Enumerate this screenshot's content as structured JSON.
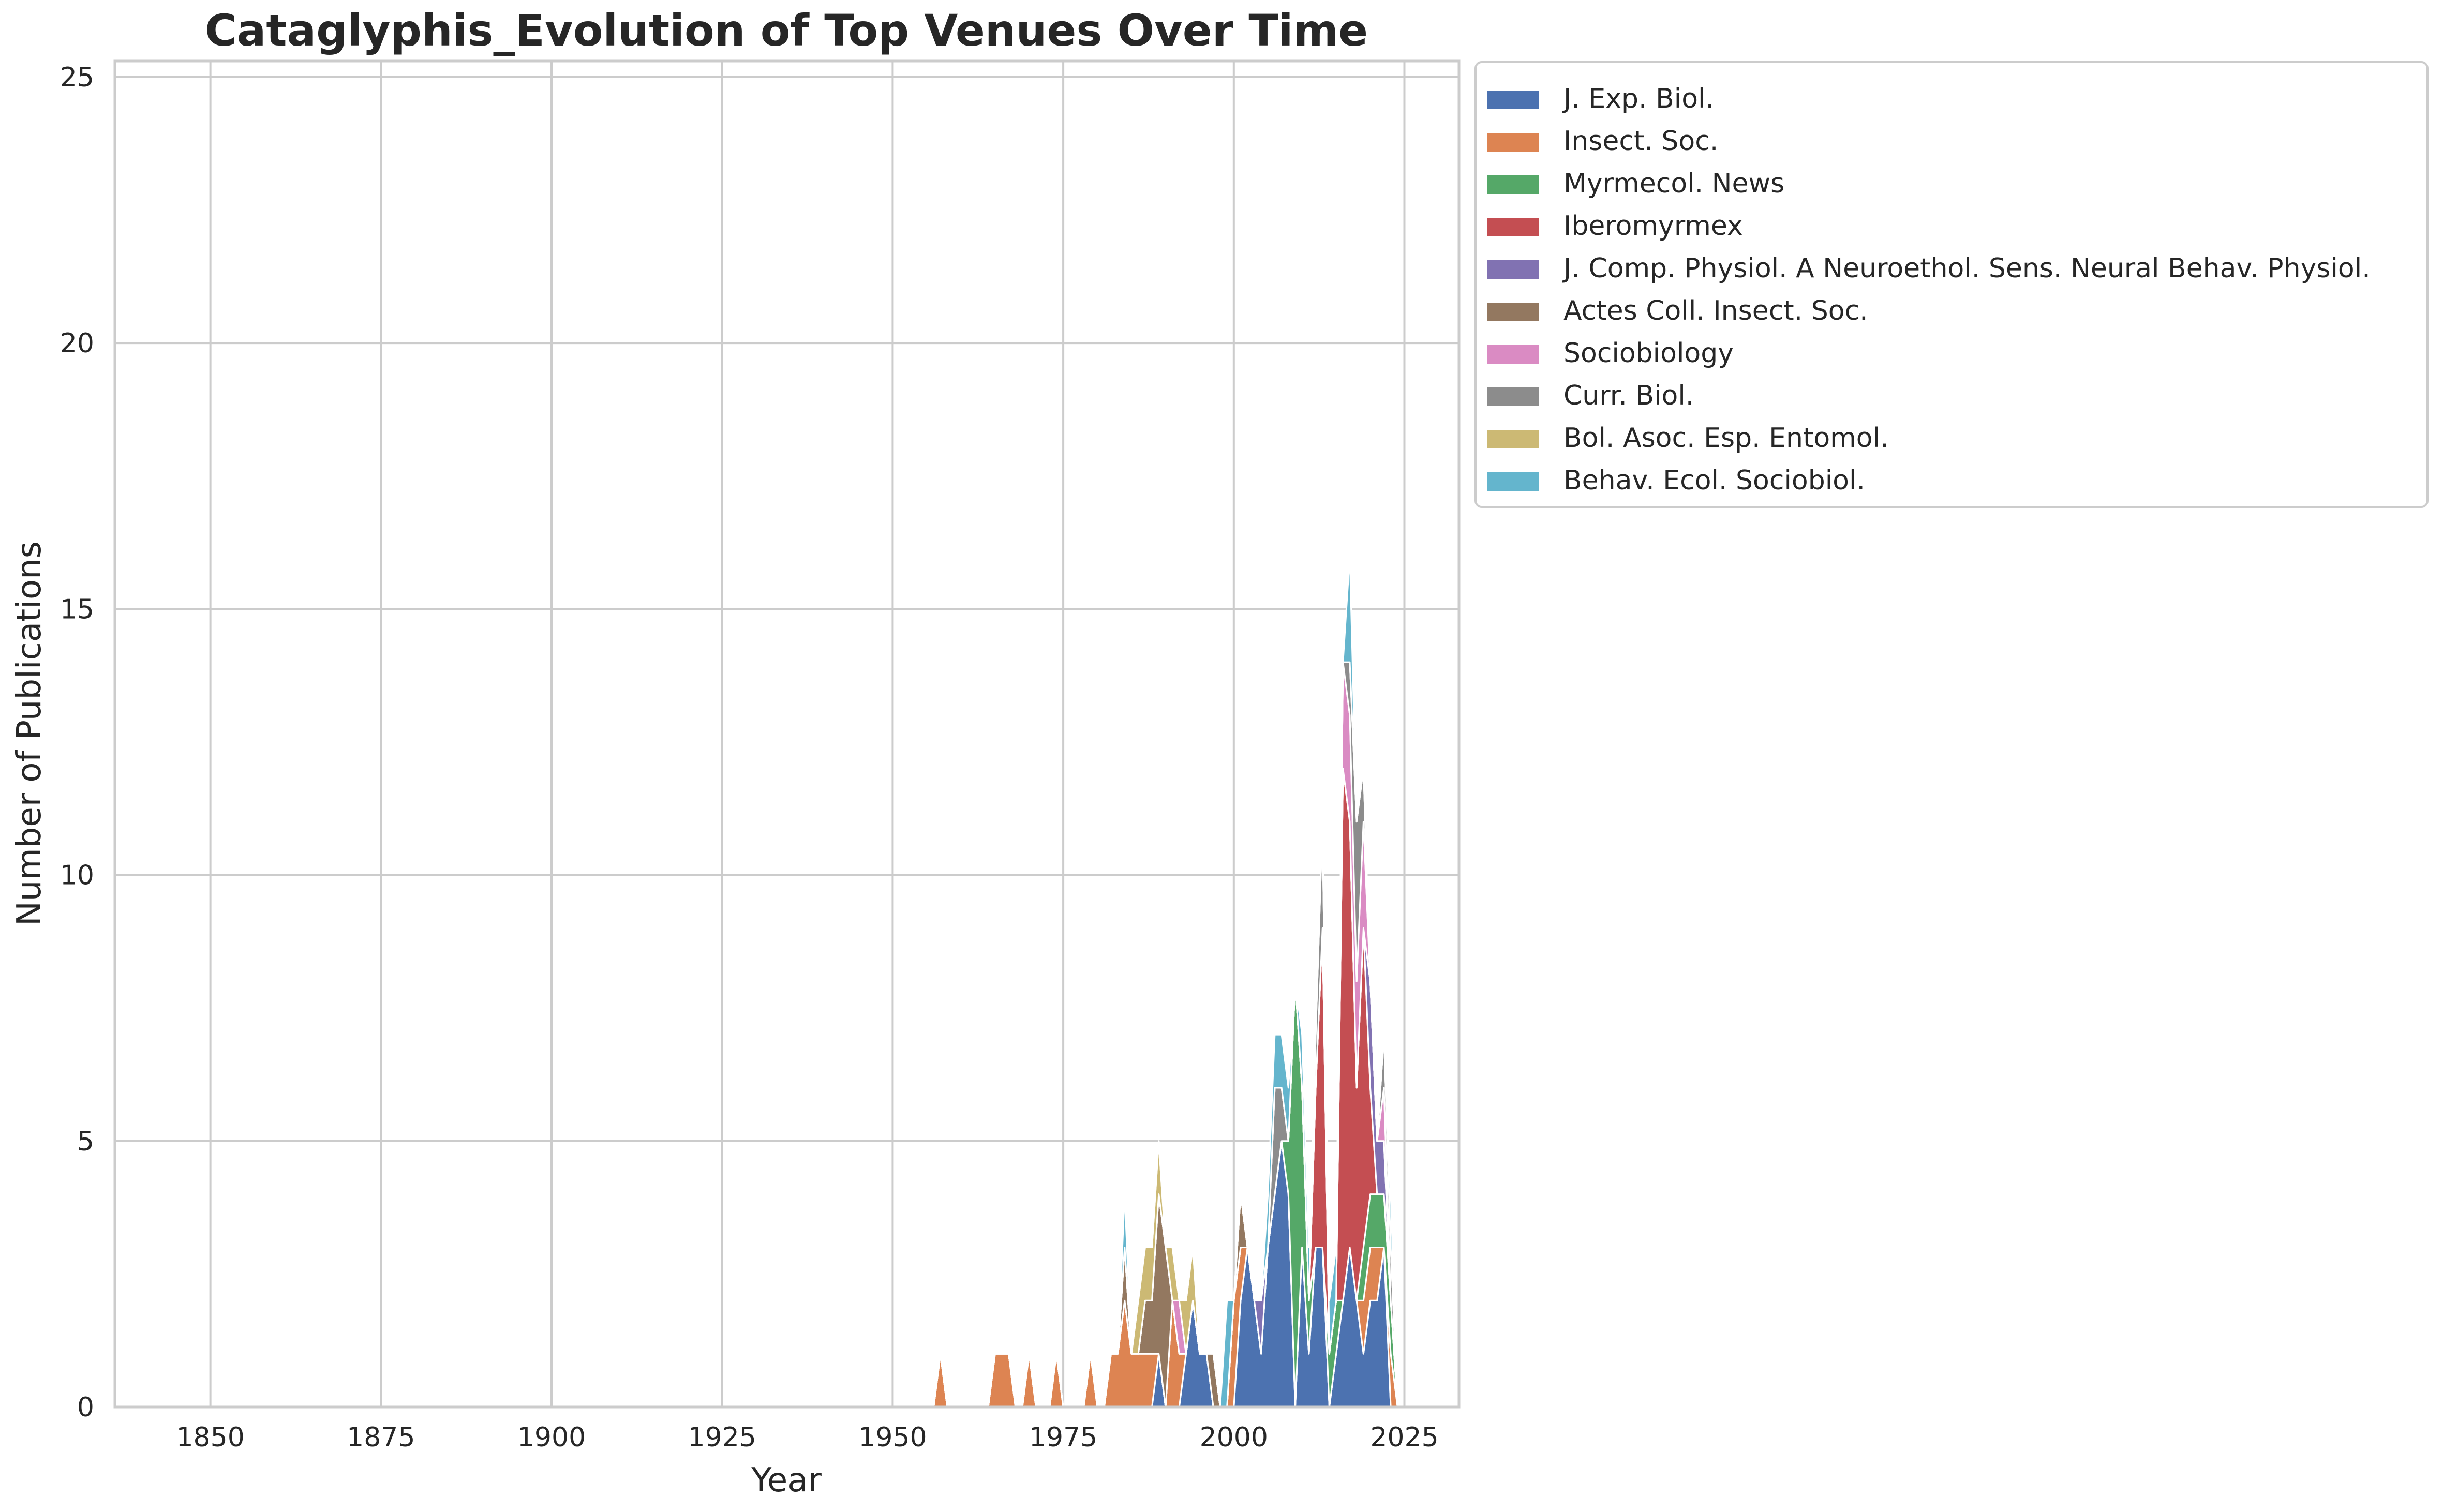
{
  "chart_data": {
    "type": "area",
    "title": "Cataglyphis_Evolution of Top Venues Over Time",
    "xlabel": "Year",
    "ylabel": "Number of Publications",
    "xlim": [
      1836,
      2033
    ],
    "ylim": [
      0,
      25.3
    ],
    "xticks": [
      1850,
      1875,
      1900,
      1925,
      1950,
      1975,
      2000,
      2025
    ],
    "yticks": [
      0,
      5,
      10,
      15,
      20,
      25
    ],
    "grid": true,
    "legend_position": "outside-top-right",
    "x": [
      1955,
      1956,
      1957,
      1958,
      1959,
      1960,
      1961,
      1962,
      1963,
      1964,
      1965,
      1966,
      1967,
      1968,
      1969,
      1970,
      1971,
      1972,
      1973,
      1974,
      1975,
      1976,
      1977,
      1978,
      1979,
      1980,
      1981,
      1982,
      1983,
      1984,
      1985,
      1986,
      1987,
      1988,
      1989,
      1990,
      1991,
      1992,
      1993,
      1994,
      1995,
      1996,
      1997,
      1998,
      1999,
      2000,
      2001,
      2002,
      2003,
      2004,
      2005,
      2006,
      2007,
      2008,
      2009,
      2010,
      2011,
      2012,
      2013,
      2014,
      2015,
      2016,
      2017,
      2018,
      2019,
      2020,
      2021,
      2022,
      2023,
      2024
    ],
    "series": [
      {
        "name": "J. Exp. Biol.",
        "color": "#4c72b0",
        "values": [
          0,
          0,
          0,
          0,
          0,
          0,
          0,
          0,
          0,
          0,
          0,
          0,
          0,
          0,
          0,
          0,
          0,
          0,
          0,
          0,
          0,
          0,
          0,
          0,
          0,
          0,
          0,
          0,
          0,
          0,
          0,
          0,
          0,
          0,
          1,
          0,
          0,
          0,
          1,
          2,
          1,
          1,
          0,
          0,
          0,
          0,
          2,
          3,
          2,
          1,
          3,
          4,
          5,
          4,
          0,
          3,
          1,
          3,
          3,
          0,
          1,
          2,
          3,
          2,
          1,
          2,
          2,
          3,
          0,
          0
        ]
      },
      {
        "name": "Insect. Soc.",
        "color": "#dd8452",
        "values": [
          0,
          0,
          1,
          0,
          0,
          0,
          0,
          0,
          0,
          0,
          1,
          1,
          1,
          0,
          0,
          1,
          0,
          0,
          0,
          1,
          0,
          0,
          0,
          0,
          1,
          0,
          0,
          1,
          1,
          2,
          1,
          1,
          1,
          1,
          0,
          0,
          2,
          1,
          0,
          0,
          0,
          0,
          0,
          0,
          0,
          2,
          1,
          0,
          0,
          0,
          0,
          0,
          0,
          0,
          0,
          0,
          0,
          0,
          0,
          0,
          0,
          0,
          0,
          0,
          1,
          1,
          1,
          0,
          1,
          0
        ]
      },
      {
        "name": "Myrmecol. News",
        "color": "#55a868",
        "values": [
          0,
          0,
          0,
          0,
          0,
          0,
          0,
          0,
          0,
          0,
          0,
          0,
          0,
          0,
          0,
          0,
          0,
          0,
          0,
          0,
          0,
          0,
          0,
          0,
          0,
          0,
          0,
          0,
          0,
          0,
          0,
          0,
          0,
          0,
          0,
          0,
          0,
          0,
          0,
          0,
          0,
          0,
          0,
          0,
          0,
          0,
          0,
          0,
          0,
          0,
          0,
          0,
          0,
          1,
          8,
          3,
          1,
          0,
          0,
          1,
          1,
          0,
          0,
          0,
          1,
          1,
          1,
          1,
          1,
          0
        ]
      },
      {
        "name": "Iberomyrmex",
        "color": "#c44e52",
        "values": [
          0,
          0,
          0,
          0,
          0,
          0,
          0,
          0,
          0,
          0,
          0,
          0,
          0,
          0,
          0,
          0,
          0,
          0,
          0,
          0,
          0,
          0,
          0,
          0,
          0,
          0,
          0,
          0,
          0,
          0,
          0,
          0,
          0,
          0,
          0,
          0,
          0,
          0,
          0,
          0,
          0,
          0,
          0,
          0,
          0,
          0,
          0,
          0,
          0,
          0,
          0,
          0,
          0,
          0,
          0,
          0,
          0,
          3,
          6,
          0,
          0,
          10,
          8,
          4,
          6,
          2,
          0,
          0,
          0,
          0
        ]
      },
      {
        "name": "J. Comp. Physiol. A Neuroethol. Sens. Neural Behav. Physiol.",
        "color": "#8172b2",
        "values": [
          0,
          0,
          0,
          0,
          0,
          0,
          0,
          0,
          0,
          0,
          0,
          0,
          0,
          0,
          0,
          0,
          0,
          0,
          0,
          0,
          0,
          0,
          0,
          0,
          0,
          0,
          0,
          0,
          0,
          0,
          0,
          0,
          0,
          0,
          0,
          0,
          0,
          0,
          0,
          0,
          0,
          0,
          0,
          0,
          0,
          0,
          0,
          0,
          0,
          1,
          0,
          0,
          0,
          0,
          0,
          0,
          0,
          0,
          0,
          0,
          0,
          0,
          0,
          0,
          0,
          2,
          1,
          1,
          0,
          0
        ]
      },
      {
        "name": "Actes Coll. Insect. Soc.",
        "color": "#937860",
        "values": [
          0,
          0,
          0,
          0,
          0,
          0,
          0,
          0,
          0,
          0,
          0,
          0,
          0,
          0,
          0,
          0,
          0,
          0,
          0,
          0,
          0,
          0,
          0,
          0,
          0,
          0,
          0,
          0,
          0,
          1,
          0,
          0,
          1,
          1,
          3,
          3,
          0,
          0,
          0,
          0,
          0,
          0,
          1,
          0,
          0,
          0,
          1,
          0,
          0,
          0,
          0,
          0,
          0,
          0,
          0,
          0,
          0,
          0,
          0,
          0,
          0,
          0,
          0,
          0,
          0,
          0,
          0,
          0,
          0,
          0
        ]
      },
      {
        "name": "Sociobiology",
        "color": "#da8bc3",
        "values": [
          0,
          0,
          0,
          0,
          0,
          0,
          0,
          0,
          0,
          0,
          0,
          0,
          0,
          0,
          0,
          0,
          0,
          0,
          0,
          0,
          0,
          0,
          0,
          0,
          0,
          0,
          0,
          0,
          0,
          0,
          0,
          0,
          0,
          0,
          0,
          0,
          0,
          1,
          0,
          0,
          0,
          0,
          0,
          0,
          0,
          0,
          0,
          0,
          0,
          0,
          0,
          0,
          0,
          0,
          0,
          0,
          0,
          0,
          0,
          0,
          0,
          2,
          2,
          2,
          2,
          0,
          0,
          1,
          0,
          0
        ]
      },
      {
        "name": "Curr. Biol.",
        "color": "#8c8c8c",
        "values": [
          0,
          0,
          0,
          0,
          0,
          0,
          0,
          0,
          0,
          0,
          0,
          0,
          0,
          0,
          0,
          0,
          0,
          0,
          0,
          0,
          0,
          0,
          0,
          0,
          0,
          0,
          0,
          0,
          0,
          0,
          0,
          0,
          0,
          0,
          0,
          0,
          0,
          0,
          0,
          0,
          0,
          0,
          0,
          0,
          0,
          0,
          0,
          0,
          0,
          0,
          0,
          2,
          1,
          0,
          0,
          0,
          0,
          1,
          2,
          0,
          0,
          0,
          1,
          3,
          1,
          0,
          0,
          1,
          1,
          0
        ]
      },
      {
        "name": "Bol. Asoc. Esp. Entomol.",
        "color": "#ccb974",
        "values": [
          0,
          0,
          0,
          0,
          0,
          0,
          0,
          0,
          0,
          0,
          0,
          0,
          0,
          0,
          0,
          0,
          0,
          0,
          0,
          0,
          0,
          0,
          0,
          0,
          0,
          0,
          0,
          0,
          0,
          0,
          0,
          1,
          1,
          1,
          1,
          0,
          1,
          0,
          1,
          1,
          0,
          0,
          0,
          0,
          0,
          0,
          0,
          0,
          0,
          0,
          0,
          0,
          0,
          0,
          0,
          0,
          0,
          0,
          0,
          0,
          0,
          0,
          0,
          0,
          0,
          0,
          0,
          0,
          0,
          0
        ]
      },
      {
        "name": "Behav. Ecol. Sociobiol.",
        "color": "#64b5cd",
        "values": [
          0,
          0,
          0,
          0,
          0,
          0,
          0,
          0,
          0,
          0,
          0,
          0,
          0,
          0,
          0,
          0,
          0,
          0,
          0,
          0,
          0,
          0,
          0,
          0,
          0,
          0,
          0,
          0,
          0,
          1,
          0,
          0,
          0,
          0,
          0,
          0,
          0,
          0,
          0,
          0,
          0,
          0,
          0,
          0,
          2,
          0,
          0,
          0,
          0,
          0,
          1,
          1,
          1,
          1,
          0,
          1,
          1,
          0,
          0,
          1,
          1,
          0,
          2,
          0,
          0,
          0,
          0,
          0,
          1,
          0
        ]
      }
    ]
  }
}
